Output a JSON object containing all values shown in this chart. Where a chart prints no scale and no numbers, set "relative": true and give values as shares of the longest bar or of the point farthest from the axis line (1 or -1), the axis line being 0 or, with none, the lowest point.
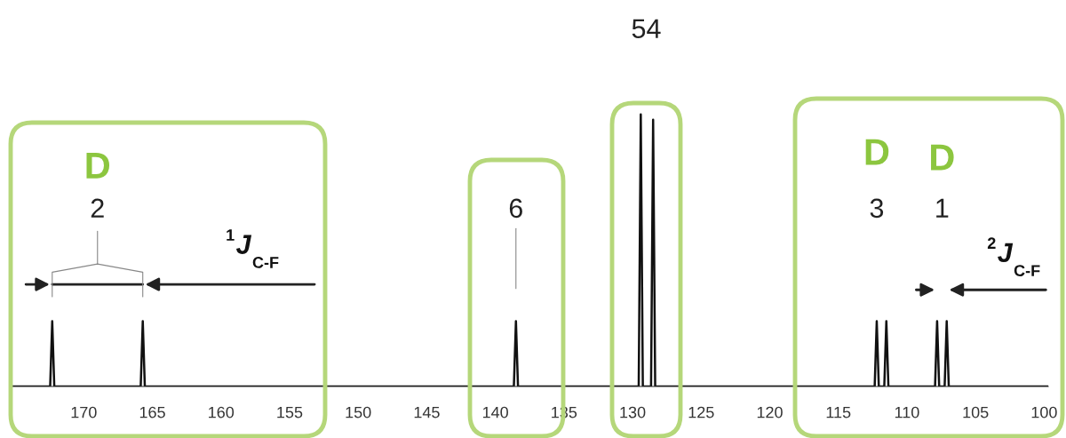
{
  "chart_data": {
    "type": "line",
    "relative": true,
    "x": [
      175.2,
      172.45,
      172.3,
      172.15,
      165.85,
      165.7,
      165.55,
      138.65,
      138.5,
      138.35,
      129.55,
      129.4,
      129.25,
      128.65,
      128.5,
      128.35,
      112.35,
      112.2,
      112.05,
      111.65,
      111.5,
      111.35,
      107.95,
      107.8,
      107.65,
      107.25,
      107.1,
      106.95,
      99.7
    ],
    "series": [
      {
        "color": "#111111",
        "values": [
          0,
          0,
          0.24,
          0,
          0,
          0.24,
          0,
          0,
          0.24,
          0,
          0,
          1,
          0,
          0,
          0.98,
          0,
          0,
          0.24,
          0,
          0,
          0.24,
          0,
          0,
          0.24,
          0,
          0,
          0.24,
          0,
          0
        ]
      }
    ],
    "xlim": [
      175.2,
      99.7
    ],
    "xticks": [
      170,
      165,
      160,
      155,
      150,
      145,
      140,
      135,
      130,
      125,
      120,
      115,
      110,
      105,
      100
    ],
    "annotations": [
      "2",
      "6",
      "54",
      "3",
      "1",
      "D",
      "D",
      "D",
      "$^{1}$J$_{C-F}$",
      "$^{2}$J$_{C-F}$"
    ]
  }
}
